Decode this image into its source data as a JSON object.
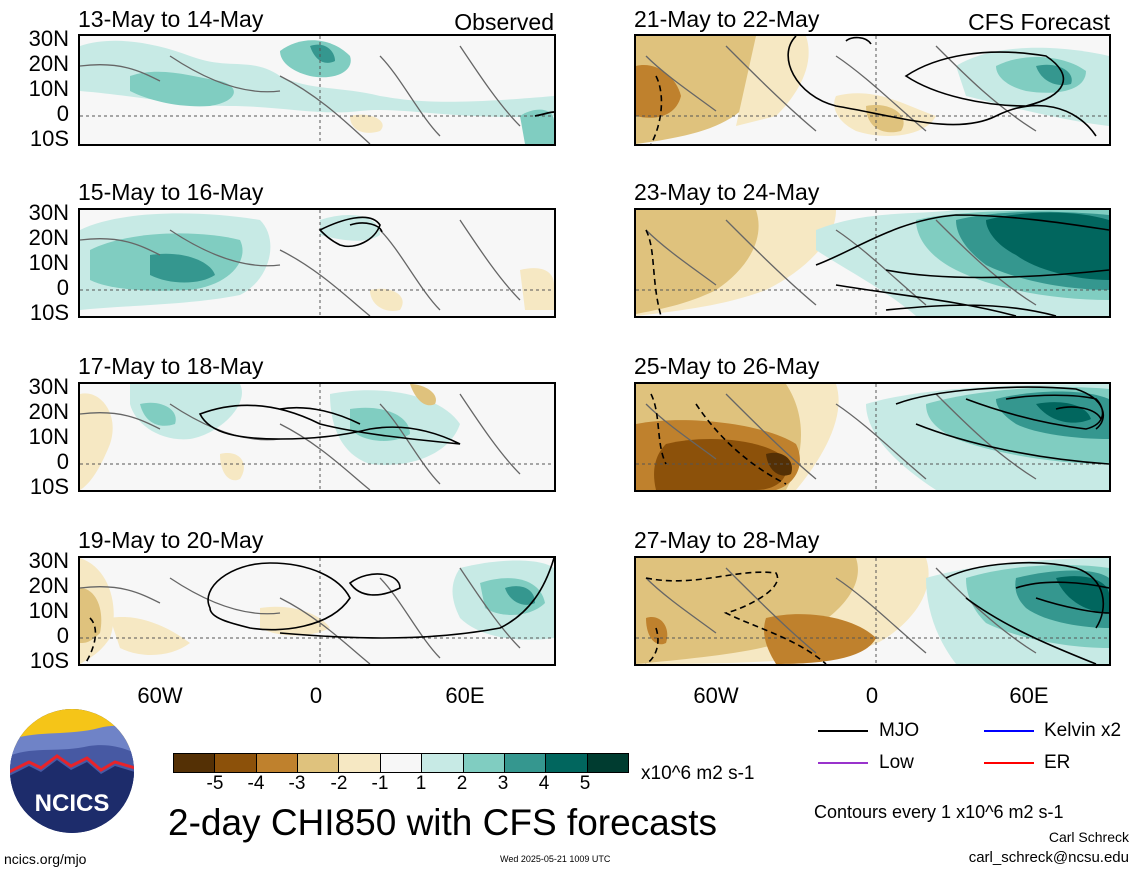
{
  "panels": [
    {
      "id": "p1",
      "title": "13-May to 14-May",
      "label": "Observed",
      "col": 0,
      "row": 0
    },
    {
      "id": "p2",
      "title": "21-May to 22-May",
      "label": "CFS Forecast",
      "col": 1,
      "row": 0
    },
    {
      "id": "p3",
      "title": "15-May to 16-May",
      "label": "",
      "col": 0,
      "row": 1
    },
    {
      "id": "p4",
      "title": "23-May to 24-May",
      "label": "",
      "col": 1,
      "row": 1
    },
    {
      "id": "p5",
      "title": "17-May to 18-May",
      "label": "",
      "col": 0,
      "row": 2
    },
    {
      "id": "p6",
      "title": "25-May to 26-May",
      "label": "",
      "col": 1,
      "row": 2
    },
    {
      "id": "p7",
      "title": "19-May to 20-May",
      "label": "",
      "col": 0,
      "row": 3
    },
    {
      "id": "p8",
      "title": "27-May to 28-May",
      "label": "",
      "col": 1,
      "row": 3
    }
  ],
  "lat_labels": [
    "30N",
    "20N",
    "10N",
    "0",
    "10S"
  ],
  "lon_labels": [
    "60W",
    "0",
    "60E"
  ],
  "colorbar": {
    "labels": [
      "-5",
      "-4",
      "-3",
      "-2",
      "-1",
      "1",
      "2",
      "3",
      "4",
      "5"
    ],
    "colors": [
      "#543005",
      "#8c510a",
      "#bf812d",
      "#dfc27d",
      "#f6e8c3",
      "#f7f7f7",
      "#c7eae5",
      "#80cdc1",
      "#35978f",
      "#01665e",
      "#003c30"
    ],
    "units": "x10^6 m2 s-1"
  },
  "legend": [
    {
      "name": "MJO",
      "color": "#000000"
    },
    {
      "name": "Kelvin x2",
      "color": "#0000ff"
    },
    {
      "name": "Low",
      "color": "#9933cc"
    },
    {
      "name": "ER",
      "color": "#ff0000"
    }
  ],
  "title": "2-day CHI850 with CFS forecasts",
  "contour_note": "Contours every 1 x10^6 m2 s-1",
  "author": "Carl Schreck",
  "email": "carl_schreck@ncsu.edu",
  "site": "ncics.org/mjo",
  "timestamp": "Wed 2025-05-21 1009 UTC",
  "logo_text": "NCICS"
}
